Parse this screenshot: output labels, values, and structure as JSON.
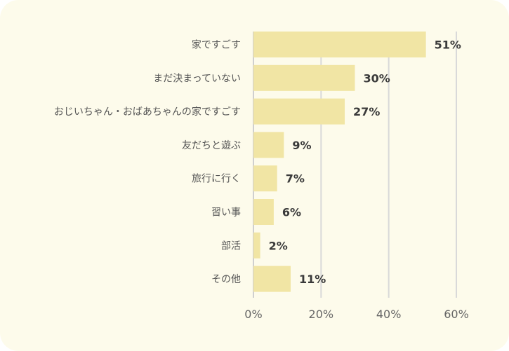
{
  "chart_data": {
    "type": "bar",
    "orientation": "horizontal",
    "title": "",
    "xlabel": "",
    "ylabel": "",
    "categories": [
      "家ですごす",
      "まだ決まっていない",
      "おじいちゃん・おばあちゃんの家ですごす",
      "友だちと遊ぶ",
      "旅行に行く",
      "習い事",
      "部活",
      "その他"
    ],
    "values": [
      51,
      30,
      27,
      9,
      7,
      6,
      2,
      11
    ],
    "value_labels": [
      "51%",
      "30%",
      "27%",
      "9%",
      "7%",
      "6%",
      "2%",
      "11%"
    ],
    "xlim": [
      0,
      60
    ],
    "xticks": [
      0,
      20,
      40,
      60
    ],
    "xtick_labels": [
      "0%",
      "20%",
      "40%",
      "60%"
    ],
    "grid": true,
    "bar_color": "#f1e5a4",
    "background_color": "#fdfbeb"
  }
}
